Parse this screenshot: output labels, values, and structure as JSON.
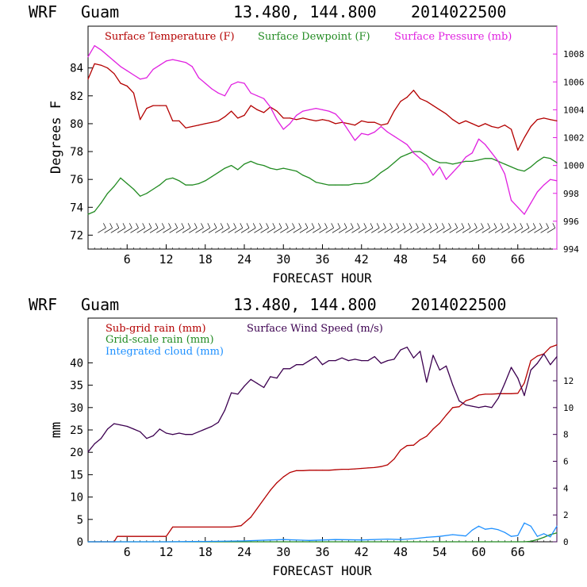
{
  "colors": {
    "temperature": "#b40000",
    "dewpoint": "#228b22",
    "pressure": "#e020e0",
    "subgrid_rain": "#b40000",
    "gridscale_rain": "#228b22",
    "cloud": "#1e90ff",
    "wind": "#3c0050",
    "barb": "#000000"
  },
  "chart_data": [
    {
      "type": "line",
      "header": {
        "model": "WRF",
        "site": "Guam",
        "coords": "13.480, 144.800",
        "run": "2014022500"
      },
      "xlabel": "FORECAST HOUR",
      "ylabel": "Degrees F",
      "xlim": [
        0,
        72
      ],
      "ylim": [
        71,
        87
      ],
      "y2lim": [
        994,
        1010
      ],
      "x_ticks": [
        "6",
        "12",
        "18",
        "24",
        "30",
        "36",
        "42",
        "48",
        "54",
        "60",
        "66"
      ],
      "y_ticks": [
        "72",
        "74",
        "76",
        "78",
        "80",
        "82",
        "84"
      ],
      "y2_ticks": [
        "994",
        "996",
        "998",
        "1000",
        "1002",
        "1004",
        "1006",
        "1008"
      ],
      "legend": [
        {
          "name": "Surface Temperature (F)",
          "color_key": "temperature"
        },
        {
          "name": "Surface Dewpoint (F)",
          "color_key": "dewpoint"
        },
        {
          "name": "Surface Pressure (mb)",
          "color_key": "pressure"
        }
      ],
      "series": [
        {
          "name": "Surface Temperature (F)",
          "axis": "left",
          "color_key": "temperature",
          "x": [
            0,
            1,
            2,
            3,
            4,
            5,
            6,
            7,
            8,
            9,
            10,
            11,
            12,
            13,
            14,
            15,
            16,
            17,
            18,
            19,
            20,
            21,
            22,
            23,
            24,
            25,
            26,
            27,
            28,
            29,
            30,
            31,
            32,
            33,
            34,
            35,
            36,
            37,
            38,
            39,
            40,
            41,
            42,
            43,
            44,
            45,
            46,
            47,
            48,
            49,
            50,
            51,
            52,
            53,
            54,
            55,
            56,
            57,
            58,
            59,
            60,
            61,
            62,
            63,
            64,
            65,
            66,
            67,
            68,
            69,
            70,
            71,
            72
          ],
          "y": [
            83.2,
            84.3,
            84.2,
            84.0,
            83.6,
            82.9,
            82.7,
            82.2,
            80.3,
            81.1,
            81.3,
            81.3,
            81.3,
            80.2,
            80.2,
            79.7,
            79.8,
            79.9,
            80.0,
            80.1,
            80.2,
            80.5,
            80.9,
            80.4,
            80.6,
            81.3,
            81.0,
            80.8,
            81.2,
            80.9,
            80.4,
            80.4,
            80.3,
            80.4,
            80.3,
            80.2,
            80.3,
            80.2,
            80.0,
            80.1,
            80.0,
            79.9,
            80.2,
            80.1,
            80.1,
            79.9,
            80.0,
            80.9,
            81.6,
            81.9,
            82.4,
            81.8,
            81.6,
            81.3,
            81.0,
            80.7,
            80.3,
            80.0,
            80.2,
            80.0,
            79.8,
            80.0,
            79.8,
            79.7,
            79.9,
            79.6,
            78.1,
            79.0,
            79.8,
            80.3,
            80.4,
            80.3,
            80.2
          ]
        },
        {
          "name": "Surface Dewpoint (F)",
          "axis": "left",
          "color_key": "dewpoint",
          "x": [
            0,
            1,
            2,
            3,
            4,
            5,
            6,
            7,
            8,
            9,
            10,
            11,
            12,
            13,
            14,
            15,
            16,
            17,
            18,
            19,
            20,
            21,
            22,
            23,
            24,
            25,
            26,
            27,
            28,
            29,
            30,
            31,
            32,
            33,
            34,
            35,
            36,
            37,
            38,
            39,
            40,
            41,
            42,
            43,
            44,
            45,
            46,
            47,
            48,
            49,
            50,
            51,
            52,
            53,
            54,
            55,
            56,
            57,
            58,
            59,
            60,
            61,
            62,
            63,
            64,
            65,
            66,
            67,
            68,
            69,
            70,
            71,
            72
          ],
          "y": [
            73.5,
            73.7,
            74.3,
            75.0,
            75.5,
            76.1,
            75.7,
            75.3,
            74.8,
            75.0,
            75.3,
            75.6,
            76.0,
            76.1,
            75.9,
            75.6,
            75.6,
            75.7,
            75.9,
            76.2,
            76.5,
            76.8,
            77.0,
            76.7,
            77.1,
            77.3,
            77.1,
            77.0,
            76.8,
            76.7,
            76.8,
            76.7,
            76.6,
            76.3,
            76.1,
            75.8,
            75.7,
            75.6,
            75.6,
            75.6,
            75.6,
            75.7,
            75.7,
            75.8,
            76.1,
            76.5,
            76.8,
            77.2,
            77.6,
            77.8,
            78.0,
            78.0,
            77.7,
            77.4,
            77.2,
            77.2,
            77.1,
            77.2,
            77.3,
            77.3,
            77.4,
            77.5,
            77.5,
            77.3,
            77.1,
            76.9,
            76.7,
            76.6,
            76.9,
            77.3,
            77.6,
            77.5,
            77.2
          ]
        },
        {
          "name": "Surface Pressure (mb)",
          "axis": "right",
          "color_key": "pressure",
          "x": [
            0,
            1,
            2,
            3,
            4,
            5,
            6,
            7,
            8,
            9,
            10,
            11,
            12,
            13,
            14,
            15,
            16,
            17,
            18,
            19,
            20,
            21,
            22,
            23,
            24,
            25,
            26,
            27,
            28,
            29,
            30,
            31,
            32,
            33,
            34,
            35,
            36,
            37,
            38,
            39,
            40,
            41,
            42,
            43,
            44,
            45,
            46,
            47,
            48,
            49,
            50,
            51,
            52,
            53,
            54,
            55,
            56,
            57,
            58,
            59,
            60,
            61,
            62,
            63,
            64,
            65,
            66,
            67,
            68,
            69,
            70,
            71,
            72
          ],
          "y": [
            1007.8,
            1008.6,
            1008.3,
            1007.9,
            1007.5,
            1007.1,
            1006.8,
            1006.5,
            1006.2,
            1006.3,
            1006.9,
            1007.2,
            1007.5,
            1007.6,
            1007.5,
            1007.4,
            1007.1,
            1006.3,
            1005.9,
            1005.5,
            1005.2,
            1005.0,
            1005.8,
            1006.0,
            1005.9,
            1005.2,
            1005.0,
            1004.8,
            1004.2,
            1003.3,
            1002.6,
            1003.0,
            1003.6,
            1003.9,
            1004.0,
            1004.1,
            1004.0,
            1003.9,
            1003.7,
            1003.2,
            1002.5,
            1001.8,
            1002.3,
            1002.2,
            1002.4,
            1002.8,
            1002.4,
            1002.1,
            1001.8,
            1001.5,
            1000.9,
            1000.5,
            1000.1,
            999.3,
            999.9,
            999.0,
            999.5,
            1000.0,
            1000.6,
            1000.9,
            1001.9,
            1001.5,
            1000.9,
            1000.3,
            999.4,
            997.5,
            997.0,
            996.5,
            997.3,
            998.1,
            998.6,
            999.0,
            998.9
          ]
        }
      ]
    },
    {
      "type": "line",
      "header": {
        "model": "WRF",
        "site": "Guam",
        "coords": "13.480, 144.800",
        "run": "2014022500"
      },
      "xlabel": "FORECAST HOUR",
      "ylabel": "mm",
      "xlim": [
        0,
        72
      ],
      "ylim": [
        0,
        50
      ],
      "y2lim": [
        0,
        16.67
      ],
      "x_ticks": [
        "6",
        "12",
        "18",
        "24",
        "30",
        "36",
        "42",
        "48",
        "54",
        "60",
        "66"
      ],
      "y_ticks": [
        "0",
        "5",
        "10",
        "15",
        "20",
        "25",
        "30",
        "35",
        "40"
      ],
      "y2_ticks": [
        "0",
        "2",
        "4",
        "6",
        "8",
        "10",
        "12"
      ],
      "legend": [
        {
          "name": "Sub-grid rain (mm)",
          "color_key": "subgrid_rain"
        },
        {
          "name": "Grid-scale rain (mm)",
          "color_key": "gridscale_rain"
        },
        {
          "name": "Integrated cloud (mm)",
          "color_key": "cloud"
        },
        {
          "name": "Surface Wind Speed (m/s)",
          "color_key": "wind"
        }
      ],
      "series": [
        {
          "name": "Sub-grid rain (mm)",
          "axis": "left",
          "color_key": "subgrid_rain",
          "x": [
            0,
            4,
            4.5,
            12,
            13,
            22,
            23.5,
            25,
            26,
            27,
            28,
            29,
            30,
            31,
            32,
            33,
            34,
            35,
            36,
            37,
            38,
            39,
            40,
            41,
            42,
            43,
            44,
            45,
            46,
            47,
            48,
            49,
            50,
            51,
            52,
            53,
            54,
            55,
            56,
            57,
            58,
            59,
            60,
            61,
            62,
            63,
            64,
            65,
            66,
            67,
            68,
            69,
            70,
            71,
            72
          ],
          "y": [
            0,
            0,
            1.2,
            1.2,
            3.3,
            3.3,
            3.6,
            5.5,
            7.5,
            9.5,
            11.5,
            13.2,
            14.5,
            15.5,
            15.9,
            15.9,
            16.0,
            16.0,
            16.0,
            16.0,
            16.1,
            16.2,
            16.2,
            16.3,
            16.4,
            16.5,
            16.6,
            16.8,
            17.2,
            18.5,
            20.5,
            21.5,
            21.6,
            22.8,
            23.6,
            25.2,
            26.5,
            28.3,
            30.0,
            30.2,
            31.5,
            32.0,
            32.8,
            33.0,
            33.0,
            33.1,
            33.1,
            33.1,
            33.2,
            35.5,
            40.5,
            41.5,
            42.0,
            43.5,
            44.0
          ]
        },
        {
          "name": "Grid-scale rain (mm)",
          "axis": "left",
          "color_key": "gridscale_rain",
          "x": [
            0,
            66,
            67,
            68,
            69,
            70,
            71,
            72
          ],
          "y": [
            0,
            0,
            0,
            0.1,
            0.5,
            1.0,
            1.6,
            2.0
          ]
        },
        {
          "name": "Integrated cloud (mm)",
          "axis": "left",
          "color_key": "cloud",
          "x": [
            0,
            12,
            20,
            24,
            28,
            30,
            34,
            38,
            42,
            46,
            48,
            50,
            52,
            54,
            56,
            58,
            59,
            60,
            61,
            62,
            63,
            64,
            65,
            66,
            67,
            68,
            69,
            70,
            71,
            72
          ],
          "y": [
            0,
            0,
            0.1,
            0.2,
            0.4,
            0.5,
            0.3,
            0.5,
            0.4,
            0.6,
            0.5,
            0.7,
            1.0,
            1.2,
            1.6,
            1.3,
            2.6,
            3.5,
            2.8,
            3.0,
            2.7,
            2.1,
            1.2,
            1.4,
            4.2,
            3.5,
            1.2,
            1.8,
            1.1,
            3.5
          ]
        },
        {
          "name": "Surface Wind Speed (m/s)",
          "axis": "right",
          "color_key": "wind",
          "x": [
            0,
            1,
            2,
            3,
            4,
            5,
            6,
            7,
            8,
            9,
            10,
            11,
            12,
            13,
            14,
            15,
            16,
            17,
            18,
            19,
            20,
            21,
            22,
            23,
            24,
            25,
            26,
            27,
            28,
            29,
            30,
            31,
            32,
            33,
            34,
            35,
            36,
            37,
            38,
            39,
            40,
            41,
            42,
            43,
            44,
            45,
            46,
            47,
            48,
            49,
            50,
            51,
            52,
            53,
            54,
            55,
            56,
            57,
            58,
            59,
            60,
            61,
            62,
            63,
            64,
            65,
            66,
            67,
            68,
            69,
            70,
            71,
            72
          ],
          "y": [
            6.7,
            7.3,
            7.7,
            8.4,
            8.8,
            8.7,
            8.6,
            8.4,
            8.2,
            7.7,
            7.9,
            8.4,
            8.1,
            8.0,
            8.1,
            8.0,
            8.0,
            8.2,
            8.4,
            8.6,
            8.9,
            9.8,
            11.1,
            11.0,
            11.6,
            12.1,
            11.8,
            11.5,
            12.3,
            12.2,
            12.9,
            12.9,
            13.2,
            13.2,
            13.5,
            13.8,
            13.2,
            13.5,
            13.5,
            13.7,
            13.5,
            13.6,
            13.5,
            13.5,
            13.8,
            13.3,
            13.5,
            13.6,
            14.3,
            14.5,
            13.7,
            14.2,
            11.9,
            13.9,
            12.8,
            13.1,
            11.7,
            10.5,
            10.2,
            10.1,
            10.0,
            10.1,
            10.0,
            10.7,
            11.8,
            13.0,
            12.2,
            10.9,
            12.8,
            13.3,
            14.0,
            13.2,
            13.8
          ]
        }
      ]
    }
  ]
}
